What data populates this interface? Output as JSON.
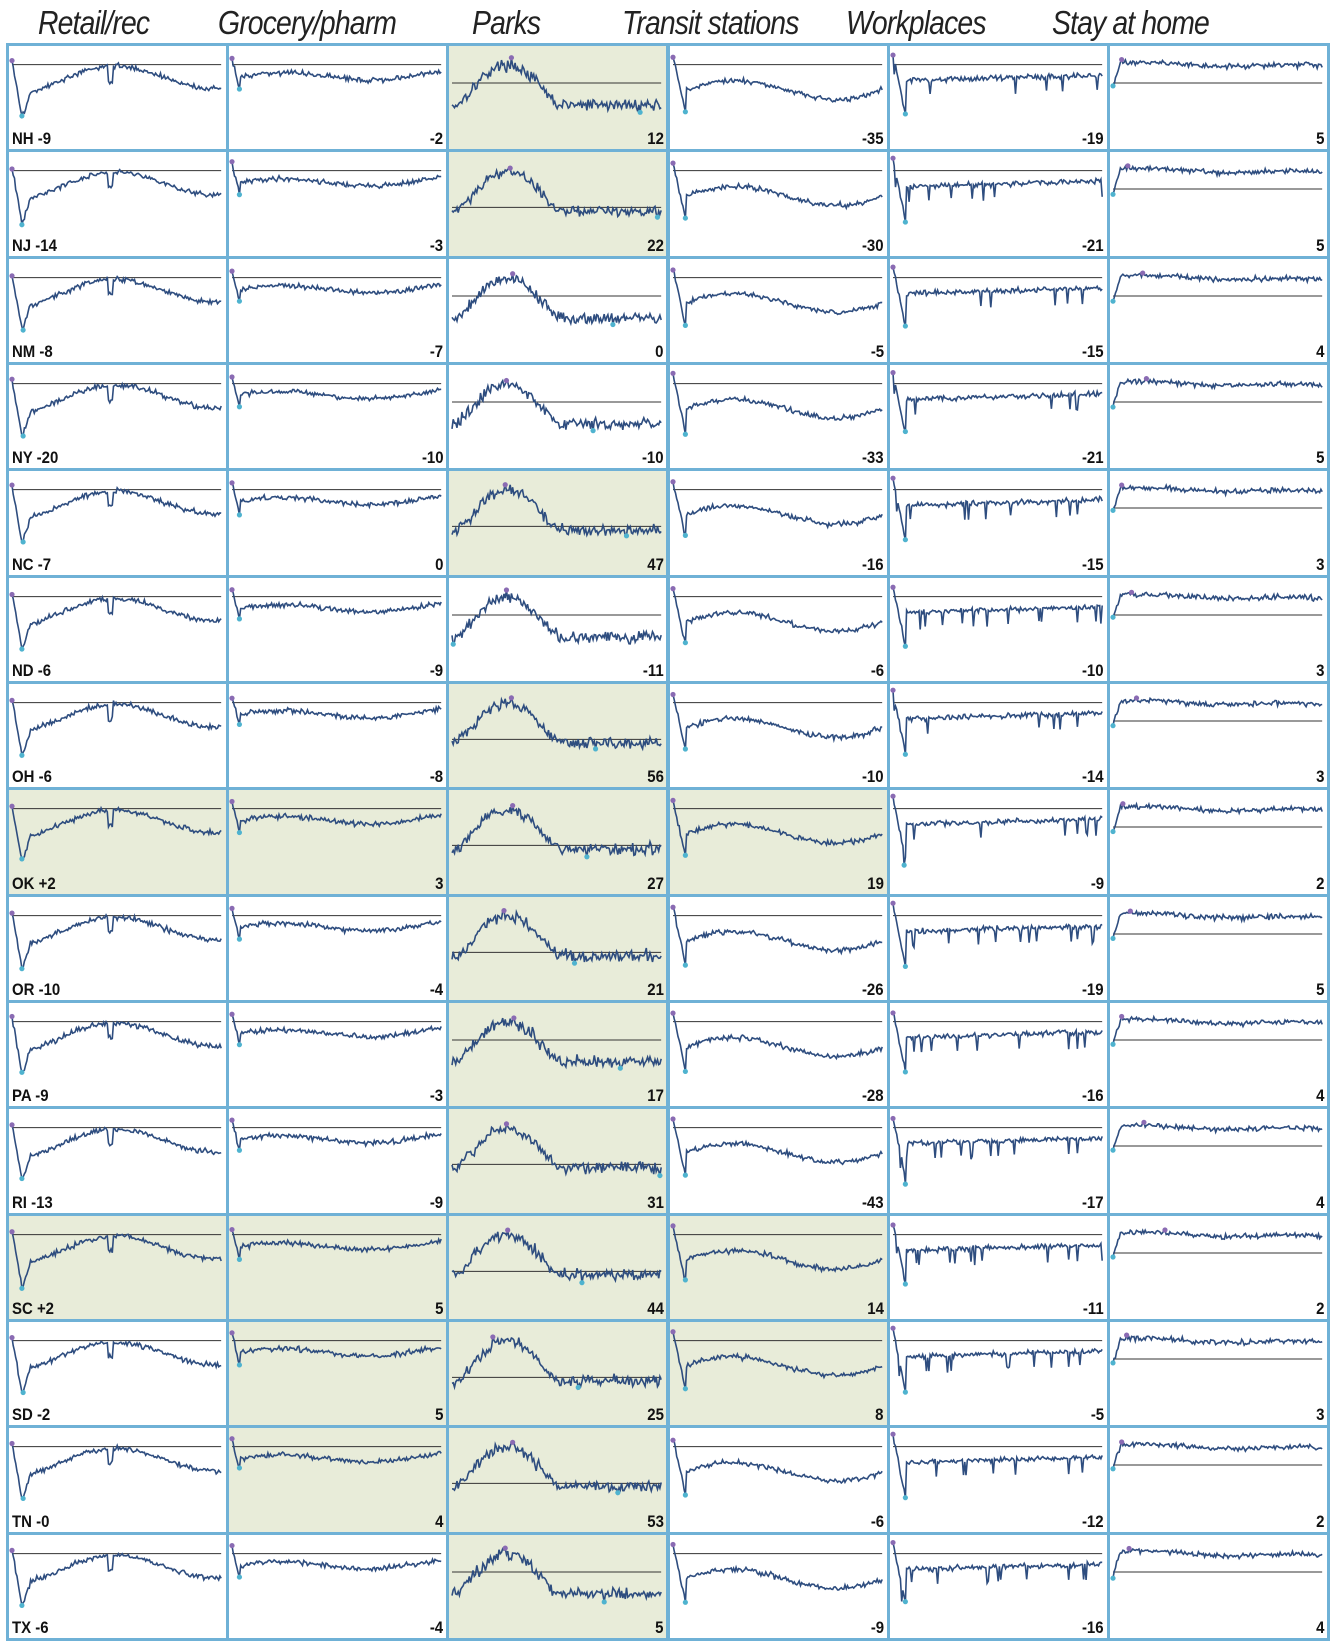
{
  "columns": [
    "Retail/rec",
    "Grocery/pharm",
    "Parks",
    "Transit stations",
    "Workplaces",
    "Stay at home"
  ],
  "colors": {
    "grid_border": "#6fb1d6",
    "highlight_bg": "#e8ecd9",
    "normal_bg": "#ffffff",
    "line": "#2e4d7f",
    "baseline": "#333333",
    "min_marker": "#4fb3cf",
    "max_marker": "#8a6bb3"
  },
  "chart_data": {
    "type": "line",
    "note_values": "Each cell is a sparkline of mobility change vs. baseline; the printed number is the value shown in the cell.",
    "rows": [
      {
        "state": "NH",
        "values": [
          -9,
          -2,
          12,
          -35,
          -19,
          5
        ],
        "highlight": [
          false,
          false,
          true,
          false,
          false,
          false
        ]
      },
      {
        "state": "NJ",
        "values": [
          -14,
          -3,
          22,
          -30,
          -21,
          5
        ],
        "highlight": [
          false,
          false,
          true,
          false,
          false,
          false
        ]
      },
      {
        "state": "NM",
        "values": [
          -8,
          -7,
          0,
          -5,
          -15,
          4
        ],
        "highlight": [
          false,
          false,
          false,
          false,
          false,
          false
        ]
      },
      {
        "state": "NY",
        "values": [
          -20,
          -10,
          -10,
          -33,
          -21,
          5
        ],
        "highlight": [
          false,
          false,
          false,
          false,
          false,
          false
        ]
      },
      {
        "state": "NC",
        "values": [
          -7,
          0,
          47,
          -16,
          -15,
          3
        ],
        "highlight": [
          false,
          false,
          true,
          false,
          false,
          false
        ]
      },
      {
        "state": "ND",
        "values": [
          -6,
          -9,
          -11,
          -6,
          -10,
          3
        ],
        "highlight": [
          false,
          false,
          false,
          false,
          false,
          false
        ]
      },
      {
        "state": "OH",
        "values": [
          -6,
          -8,
          56,
          -10,
          -14,
          3
        ],
        "highlight": [
          false,
          false,
          true,
          false,
          false,
          false
        ]
      },
      {
        "state": "OK",
        "values": [
          2,
          3,
          27,
          19,
          -9,
          2
        ],
        "highlight": [
          true,
          true,
          true,
          true,
          false,
          false
        ]
      },
      {
        "state": "OR",
        "values": [
          -10,
          -4,
          21,
          -26,
          -19,
          5
        ],
        "highlight": [
          false,
          false,
          true,
          false,
          false,
          false
        ]
      },
      {
        "state": "PA",
        "values": [
          -9,
          -3,
          17,
          -28,
          -16,
          4
        ],
        "highlight": [
          false,
          false,
          true,
          false,
          false,
          false
        ]
      },
      {
        "state": "RI",
        "values": [
          -13,
          -9,
          31,
          -43,
          -17,
          4
        ],
        "highlight": [
          false,
          false,
          true,
          false,
          false,
          false
        ]
      },
      {
        "state": "SC",
        "values": [
          2,
          5,
          44,
          14,
          -11,
          2
        ],
        "highlight": [
          true,
          true,
          true,
          true,
          false,
          false
        ]
      },
      {
        "state": "SD",
        "values": [
          -2,
          5,
          25,
          8,
          -5,
          3
        ],
        "highlight": [
          false,
          true,
          true,
          true,
          false,
          false
        ]
      },
      {
        "state": "TN",
        "values": [
          0,
          4,
          53,
          -6,
          -12,
          2
        ],
        "highlight": [
          false,
          true,
          true,
          false,
          false,
          false
        ]
      },
      {
        "state": "TX",
        "values": [
          -6,
          -4,
          5,
          -9,
          -16,
          4
        ],
        "highlight": [
          false,
          false,
          true,
          false,
          false,
          false
        ]
      }
    ],
    "labels": [
      [
        "NH -9",
        "-2",
        "12",
        "-35",
        "-19",
        "5"
      ],
      [
        "NJ -14",
        "-3",
        "22",
        "-30",
        "-21",
        "5"
      ],
      [
        "NM -8",
        "-7",
        "0",
        "-5",
        "-15",
        "4"
      ],
      [
        "NY -20",
        "-10",
        "-10",
        "-33",
        "-21",
        "5"
      ],
      [
        "NC -7",
        "0",
        "47",
        "-16",
        "-15",
        "3"
      ],
      [
        "ND -6",
        "-9",
        "-11",
        "-6",
        "-10",
        "3"
      ],
      [
        "OH -6",
        "-8",
        "56",
        "-10",
        "-14",
        "3"
      ],
      [
        "OK +2",
        "3",
        "27",
        "19",
        "-9",
        "2"
      ],
      [
        "OR -10",
        "-4",
        "21",
        "-26",
        "-19",
        "5"
      ],
      [
        "PA -9",
        "-3",
        "17",
        "-28",
        "-16",
        "4"
      ],
      [
        "RI -13",
        "-9",
        "31",
        "-43",
        "-17",
        "4"
      ],
      [
        "SC +2",
        "5",
        "44",
        "14",
        "-11",
        "2"
      ],
      [
        "SD -2",
        "5",
        "25",
        "8",
        "-5",
        "3"
      ],
      [
        "TN -0",
        "4",
        "53",
        "-6",
        "-12",
        "2"
      ],
      [
        "TX -6",
        "-4",
        "5",
        "-9",
        "-16",
        "4"
      ]
    ]
  }
}
